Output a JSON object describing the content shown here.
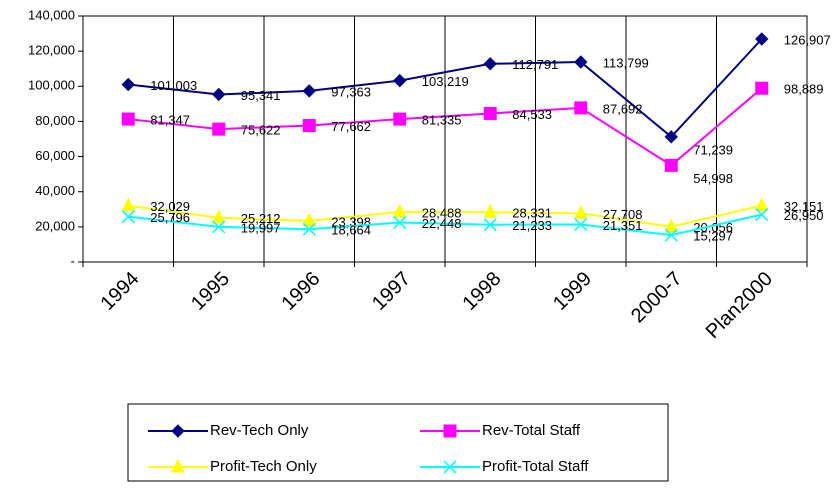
{
  "chart_data": {
    "type": "line",
    "categories": [
      "1994",
      "1995",
      "1996",
      "1997",
      "1998",
      "1999",
      "2000-7",
      "Plan2000"
    ],
    "ylim": [
      0,
      140000
    ],
    "yticks": [
      {
        "value": 0,
        "label": "-"
      },
      {
        "value": 20000,
        "label": "20,000"
      },
      {
        "value": 40000,
        "label": "40,000"
      },
      {
        "value": 60000,
        "label": "60,000"
      },
      {
        "value": 80000,
        "label": "80,000"
      },
      {
        "value": 100000,
        "label": "100,000"
      },
      {
        "value": 120000,
        "label": "120,000"
      },
      {
        "value": 140000,
        "label": "140,000"
      }
    ],
    "legend": "bottom",
    "series": [
      {
        "name": "Rev-Tech Only",
        "color": "#000080",
        "marker": "diamond",
        "values": [
          101003,
          95341,
          97363,
          103219,
          112791,
          113799,
          71239,
          126907
        ],
        "value_labels": [
          "101,003",
          "95,341",
          "97,363",
          "103,219",
          "112,791",
          "113,799",
          "71,239",
          "126,907"
        ]
      },
      {
        "name": "Rev-Total Staff",
        "color": "#ff00ff",
        "marker": "square",
        "values": [
          81347,
          75622,
          77662,
          81335,
          84533,
          87692,
          54998,
          98889
        ],
        "value_labels": [
          "81,347",
          "75,622",
          "77,662",
          "81,335",
          "84,533",
          "87,692",
          "54,998",
          "98,889"
        ]
      },
      {
        "name": "Profit-Tech Only",
        "color": "#ffff00",
        "marker": "triangle",
        "values": [
          32029,
          25212,
          23398,
          28488,
          28331,
          27708,
          20056,
          32151
        ],
        "value_labels": [
          "32,029",
          "25,212",
          "23,398",
          "28,488",
          "28,331",
          "27,708",
          "20,056",
          "32,151"
        ]
      },
      {
        "name": "Profit-Total Staff",
        "color": "#00ffff",
        "marker": "x",
        "values": [
          25796,
          19997,
          18664,
          22448,
          21233,
          21351,
          15297,
          26950
        ],
        "value_labels": [
          "25,796",
          "19,997",
          "18,664",
          "22,448",
          "21,233",
          "21,351",
          "15,297",
          "26,950"
        ]
      }
    ]
  }
}
